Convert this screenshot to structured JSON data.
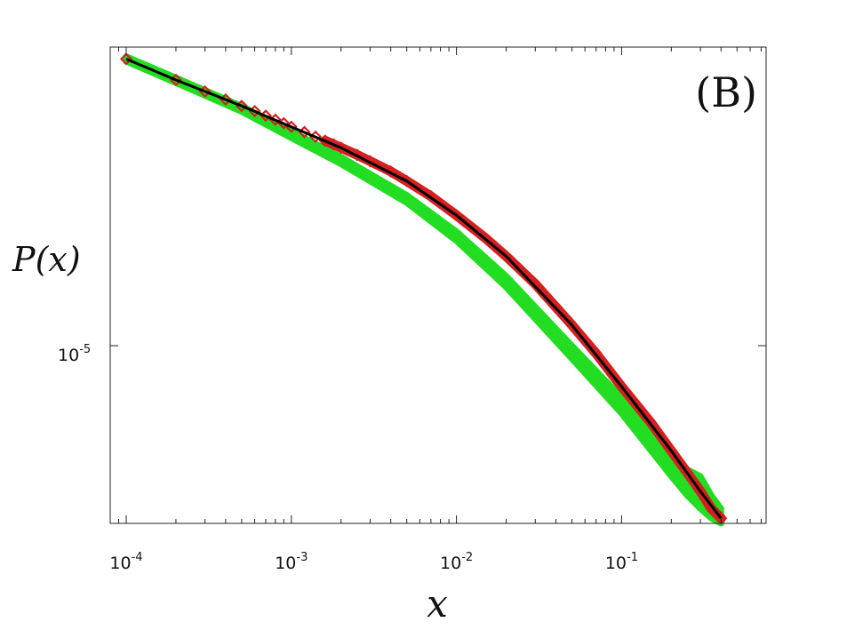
{
  "chart_data": {
    "type": "scatter",
    "title": "",
    "panel_label": "(B)",
    "xlabel": "x",
    "ylabel": "P(x)",
    "x_scale": "log",
    "y_scale": "log",
    "xlim": [
      8e-05,
      0.75
    ],
    "ylim": [
      2.4e-06,
      0.00011
    ],
    "grid": false,
    "x_ticks": [
      {
        "value": 0.0001,
        "base": "10",
        "exp": "-4"
      },
      {
        "value": 0.001,
        "base": "10",
        "exp": "-3"
      },
      {
        "value": 0.01,
        "base": "10",
        "exp": "-2"
      },
      {
        "value": 0.1,
        "base": "10",
        "exp": "-1"
      }
    ],
    "y_ticks": [
      {
        "value": 1e-05,
        "base": "10",
        "exp": "-5"
      }
    ],
    "colors": {
      "band": "#22dd22",
      "markers": "#d42020",
      "fit": "#000000",
      "axes": "#222222"
    },
    "series": [
      {
        "role": "band",
        "x": [
          0.0001,
          0.0002,
          0.0005,
          0.001,
          0.002,
          0.005,
          0.01,
          0.02,
          0.05,
          0.1,
          0.2,
          0.25,
          0.3,
          0.35,
          0.4
        ],
        "y_upper": [
          0.000102,
          8.6e-05,
          6.85e-05,
          5.6e-05,
          4.55e-05,
          3.35e-05,
          2.5e-05,
          1.75e-05,
          1e-05,
          6.6e-06,
          4.3e-06,
          3.7e-06,
          3.5e-06,
          3e-06,
          2.7e-06
        ],
        "y_lower": [
          9.8e-05,
          8.25e-05,
          6.55e-05,
          5.3e-05,
          4.3e-05,
          3.15e-05,
          2.32e-05,
          1.6e-05,
          9e-06,
          5.8e-06,
          3.5e-06,
          3e-06,
          2.7e-06,
          2.5e-06,
          2.4e-06
        ]
      },
      {
        "role": "markers",
        "x": [
          0.0001,
          0.0002,
          0.0003,
          0.0004,
          0.0005,
          0.0006,
          0.0007,
          0.0008,
          0.0009,
          0.001,
          0.0012,
          0.0014,
          0.0016,
          0.0018,
          0.002,
          0.0025,
          0.003,
          0.004,
          0.005,
          0.007,
          0.01,
          0.015,
          0.02,
          0.03,
          0.05,
          0.07,
          0.1,
          0.15,
          0.2,
          0.25,
          0.3,
          0.35,
          0.4
        ],
        "y": [
          0.0001,
          8.45e-05,
          7.7e-05,
          7.22e-05,
          6.86e-05,
          6.58e-05,
          6.34e-05,
          6.14e-05,
          5.97e-05,
          5.8e-05,
          5.56e-05,
          5.36e-05,
          5.19e-05,
          5.04e-05,
          4.9e-05,
          4.63e-05,
          4.4e-05,
          4.05e-05,
          3.75e-05,
          3.32e-05,
          2.85e-05,
          2.37e-05,
          2.05e-05,
          1.64e-05,
          1.18e-05,
          9.4e-06,
          7.2e-06,
          5.4e-06,
          4.3e-06,
          3.6e-06,
          3.1e-06,
          2.7e-06,
          2.5e-06
        ]
      },
      {
        "role": "fit",
        "x": [
          0.0001,
          0.0002,
          0.0005,
          0.001,
          0.002,
          0.005,
          0.01,
          0.02,
          0.05,
          0.1,
          0.2,
          0.3,
          0.4
        ],
        "y": [
          0.0001,
          8.45e-05,
          6.86e-05,
          5.8e-05,
          4.9e-05,
          3.75e-05,
          2.85e-05,
          2.05e-05,
          1.18e-05,
          7.2e-06,
          4.3e-06,
          3.1e-06,
          2.5e-06
        ]
      }
    ]
  }
}
